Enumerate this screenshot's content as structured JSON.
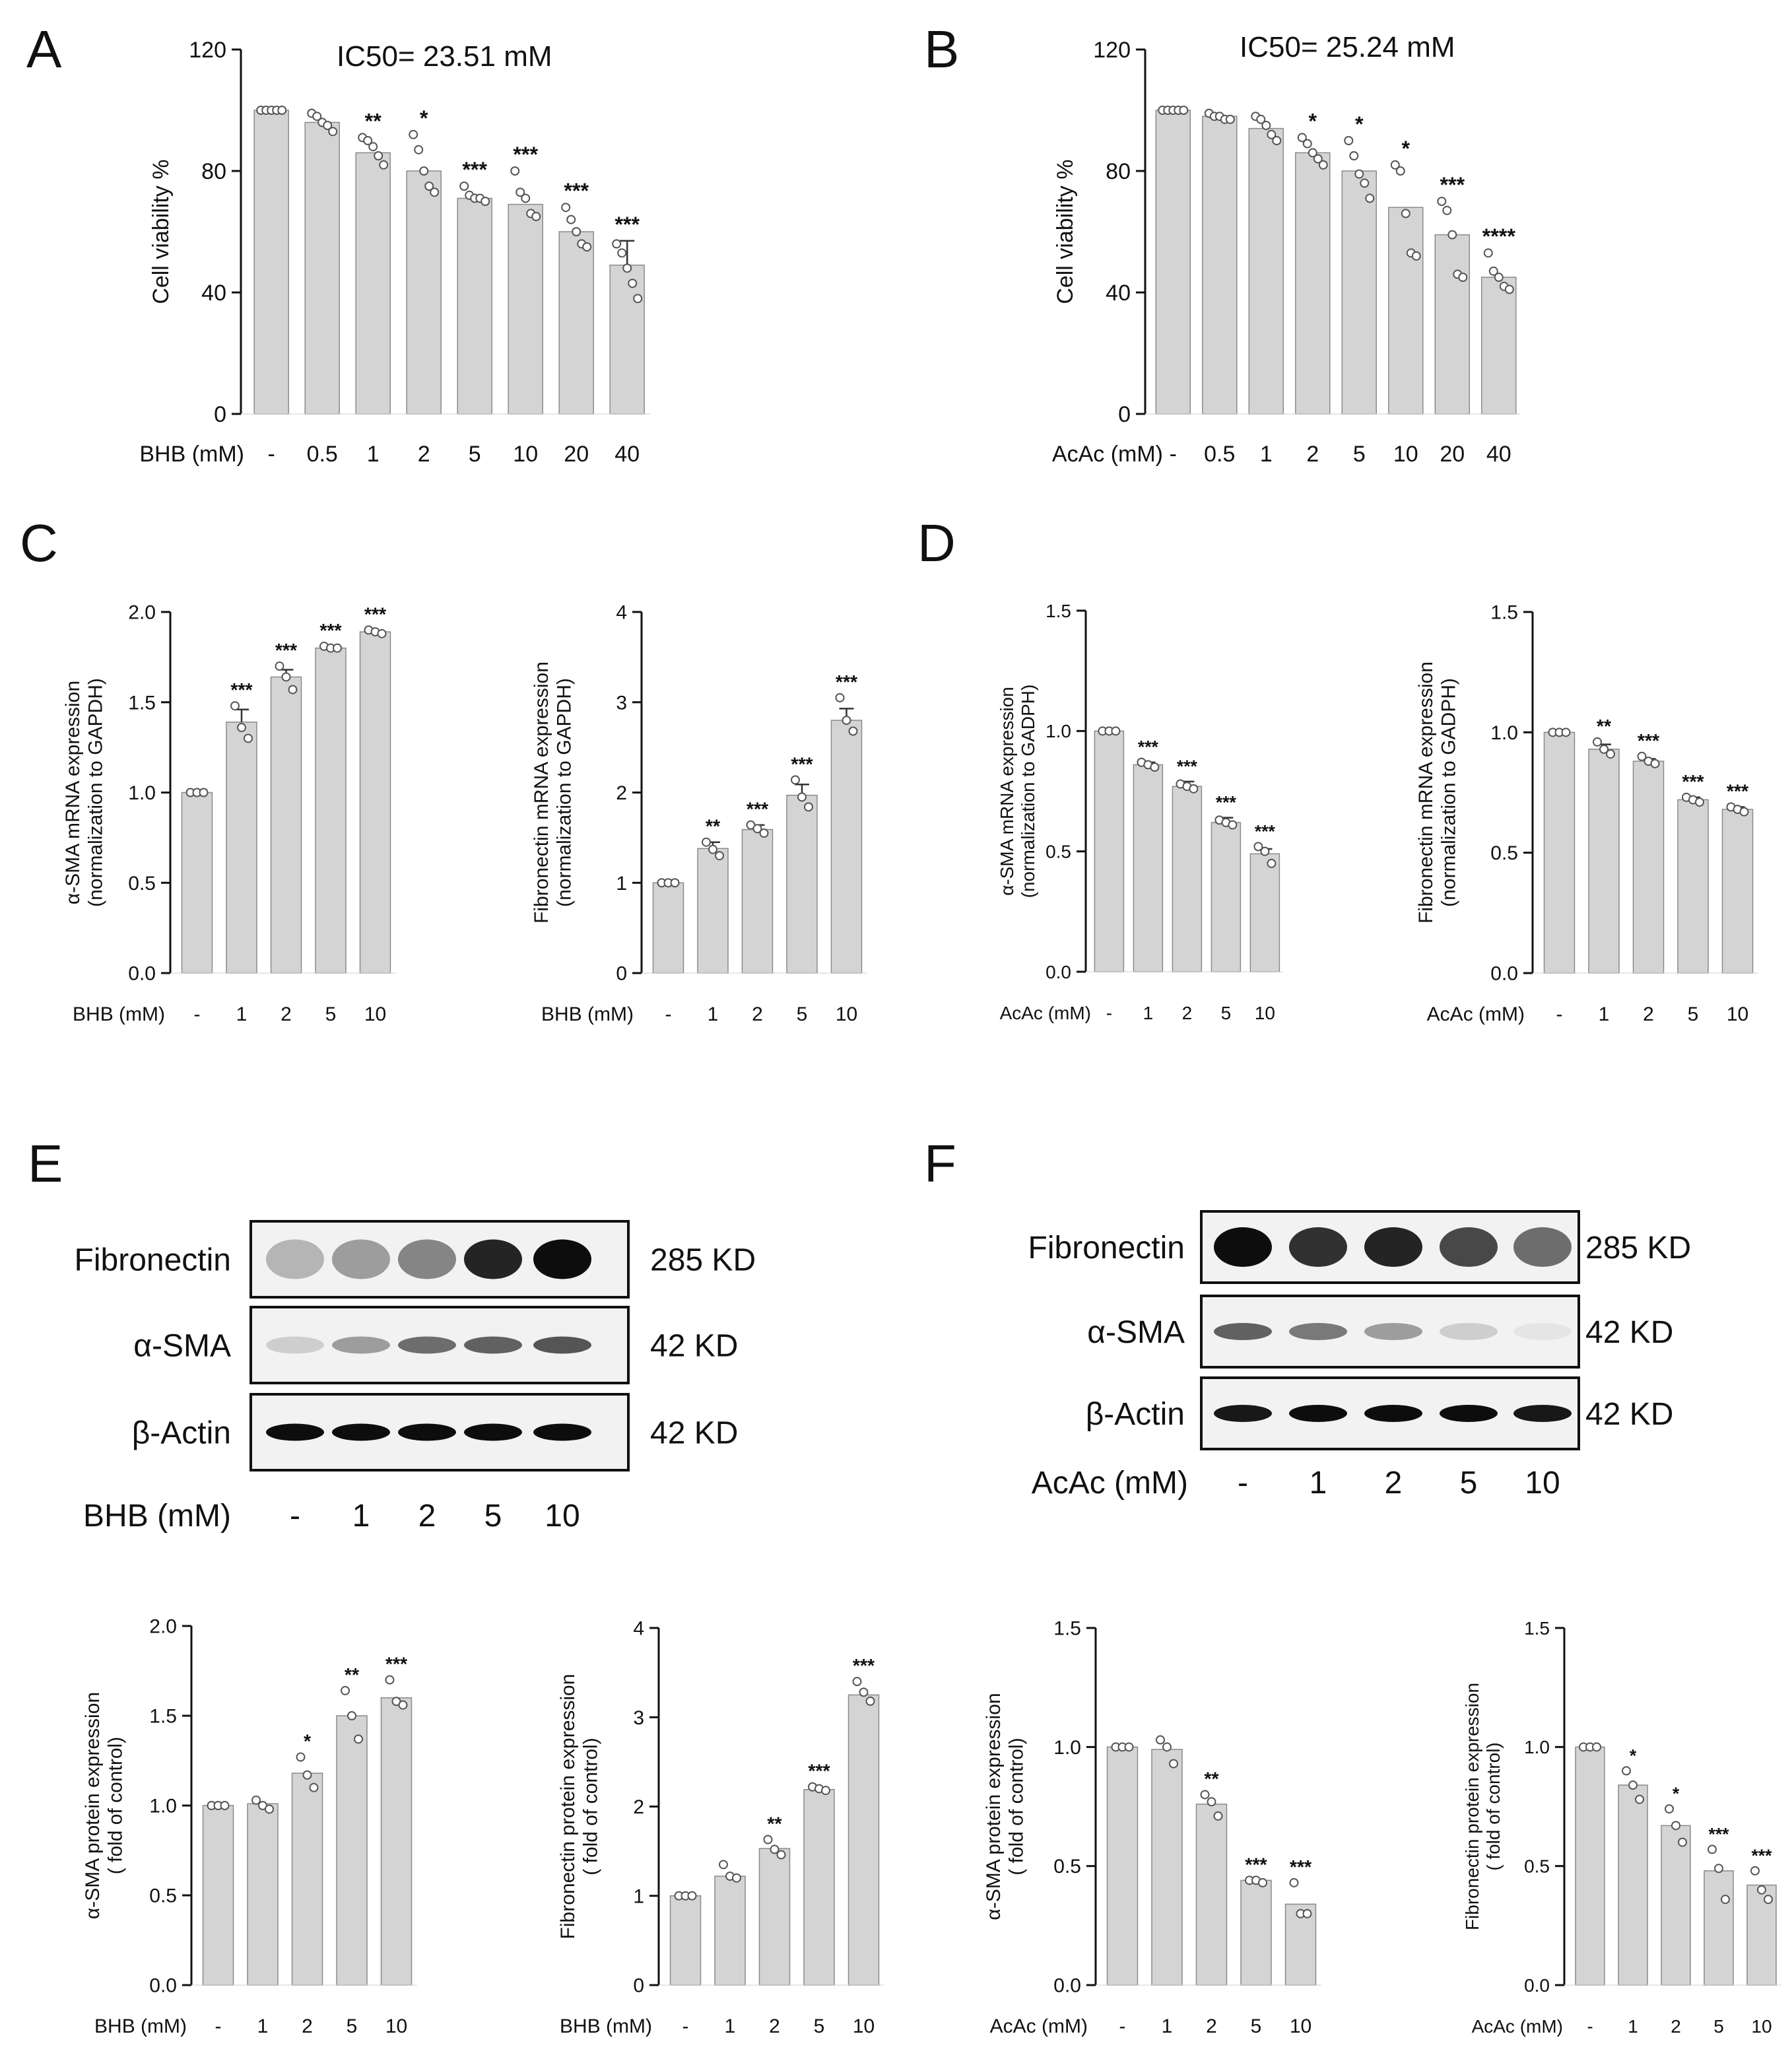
{
  "colors": {
    "bar": "#d4d4d4",
    "bar_stroke": "#8a8a8a",
    "axis": "#111111",
    "point_stroke": "#555555"
  },
  "chart_data": [
    {
      "id": "A",
      "panel_label": "A",
      "type": "bar",
      "title": "IC50= 23.51 mM",
      "xlabel": "BHB (mM)",
      "ylabel": "Cell viability %",
      "categories": [
        "-",
        "0.5",
        "1",
        "2",
        "5",
        "10",
        "20",
        "40"
      ],
      "values": [
        100,
        96,
        86,
        80,
        71,
        69,
        60,
        49
      ],
      "errors": [
        0,
        0,
        0,
        0,
        0,
        0,
        0,
        8
      ],
      "points": [
        [
          100,
          100,
          100,
          100,
          100
        ],
        [
          99,
          98,
          96,
          95,
          93
        ],
        [
          91,
          90,
          88,
          85,
          82
        ],
        [
          92,
          87,
          80,
          75,
          73
        ],
        [
          75,
          72,
          71,
          71,
          70
        ],
        [
          80,
          73,
          71,
          66,
          65
        ],
        [
          68,
          64,
          60,
          56,
          55
        ],
        [
          56,
          53,
          48,
          43,
          38
        ]
      ],
      "sig": [
        "",
        "",
        "**",
        "*",
        "***",
        "***",
        "***",
        "***"
      ],
      "ylim": [
        0,
        120
      ],
      "yticks": [
        0,
        40,
        80,
        120
      ],
      "ytick_labels": [
        "0",
        "40",
        "80",
        "120"
      ]
    },
    {
      "id": "B",
      "panel_label": "B",
      "type": "bar",
      "title": "IC50= 25.24 mM",
      "xlabel": "AcAc (mM)",
      "ylabel": "Cell viability %",
      "categories": [
        "-",
        "0.5",
        "1",
        "2",
        "5",
        "10",
        "20",
        "40"
      ],
      "values": [
        100,
        98,
        94,
        86,
        80,
        68,
        59,
        45
      ],
      "errors": [
        0,
        0,
        0,
        0,
        0,
        0,
        0,
        0
      ],
      "points": [
        [
          100,
          100,
          100,
          100,
          100
        ],
        [
          99,
          98,
          98,
          97,
          97
        ],
        [
          98,
          97,
          95,
          92,
          90
        ],
        [
          91,
          89,
          86,
          84,
          82
        ],
        [
          90,
          85,
          79,
          76,
          71
        ],
        [
          82,
          80,
          66,
          53,
          52
        ],
        [
          70,
          67,
          59,
          46,
          45
        ],
        [
          53,
          47,
          45,
          42,
          41
        ]
      ],
      "sig": [
        "",
        "",
        "",
        "*",
        "*",
        "*",
        "***",
        "****"
      ],
      "ylim": [
        0,
        120
      ],
      "yticks": [
        0,
        40,
        80,
        120
      ],
      "ytick_labels": [
        "0",
        "40",
        "80",
        "120"
      ]
    },
    {
      "id": "C1",
      "panel_label": "C",
      "type": "bar",
      "xlabel": "BHB (mM)",
      "ylabel_lines": [
        "α-SMA mRNA expression",
        "(normalization to GAPDH)"
      ],
      "categories": [
        "-",
        "1",
        "2",
        "5",
        "10"
      ],
      "values": [
        1.0,
        1.39,
        1.64,
        1.8,
        1.89
      ],
      "errors": [
        0,
        0.07,
        0.04,
        0,
        0
      ],
      "points": [
        [
          1.0,
          1.0,
          1.0
        ],
        [
          1.48,
          1.36,
          1.3
        ],
        [
          1.7,
          1.64,
          1.57
        ],
        [
          1.81,
          1.8,
          1.8
        ],
        [
          1.9,
          1.89,
          1.88
        ]
      ],
      "sig": [
        "",
        "***",
        "***",
        "***",
        "***"
      ],
      "ylim": [
        0,
        2.0
      ],
      "yticks": [
        0,
        0.5,
        1.0,
        1.5,
        2.0
      ],
      "ytick_labels": [
        "0.0",
        "0.5",
        "1.0",
        "1.5",
        "2.0"
      ]
    },
    {
      "id": "C2",
      "panel_label": "",
      "type": "bar",
      "xlabel": "BHB (mM)",
      "ylabel_lines": [
        "Fibronectin mRNA expression",
        "(normalization to GAPDH)"
      ],
      "categories": [
        "-",
        "1",
        "2",
        "5",
        "10"
      ],
      "values": [
        1.0,
        1.38,
        1.59,
        1.97,
        2.8
      ],
      "errors": [
        0,
        0.07,
        0.05,
        0.12,
        0.13
      ],
      "points": [
        [
          1.0,
          1.0,
          1.0
        ],
        [
          1.45,
          1.37,
          1.3
        ],
        [
          1.64,
          1.6,
          1.55
        ],
        [
          2.14,
          1.95,
          1.84
        ],
        [
          3.05,
          2.8,
          2.68
        ]
      ],
      "sig": [
        "",
        "**",
        "***",
        "***",
        "***"
      ],
      "ylim": [
        0,
        4
      ],
      "yticks": [
        0,
        1,
        2,
        3,
        4
      ],
      "ytick_labels": [
        "0",
        "1",
        "2",
        "3",
        "4"
      ]
    },
    {
      "id": "D1",
      "panel_label": "D",
      "type": "bar",
      "xlabel": "AcAc (mM)",
      "ylabel_lines": [
        "α-SMA mRNA expression",
        "(normalization to GADPH)"
      ],
      "categories": [
        "-",
        "1",
        "2",
        "5",
        "10"
      ],
      "values": [
        1.0,
        0.86,
        0.77,
        0.62,
        0.49
      ],
      "errors": [
        0,
        0.01,
        0.02,
        0.02,
        0.02
      ],
      "points": [
        [
          1.0,
          1.0,
          1.0
        ],
        [
          0.87,
          0.86,
          0.85
        ],
        [
          0.78,
          0.77,
          0.76
        ],
        [
          0.63,
          0.62,
          0.61
        ],
        [
          0.52,
          0.5,
          0.45
        ]
      ],
      "sig": [
        "",
        "***",
        "***",
        "***",
        "***"
      ],
      "ylim": [
        0,
        1.5
      ],
      "yticks": [
        0,
        0.5,
        1.0,
        1.5
      ],
      "ytick_labels": [
        "0.0",
        "0.5",
        "1.0",
        "1.5"
      ]
    },
    {
      "id": "D2",
      "panel_label": "",
      "type": "bar",
      "xlabel": "AcAc (mM)",
      "ylabel_lines": [
        "Fibronectin mRNA expression",
        "(normalization to GADPH)"
      ],
      "categories": [
        "-",
        "1",
        "2",
        "5",
        "10"
      ],
      "values": [
        1.0,
        0.93,
        0.88,
        0.72,
        0.68
      ],
      "errors": [
        0,
        0.02,
        0.01,
        0.01,
        0.01
      ],
      "points": [
        [
          1.0,
          1.0,
          1.0
        ],
        [
          0.96,
          0.93,
          0.91
        ],
        [
          0.9,
          0.88,
          0.87
        ],
        [
          0.73,
          0.72,
          0.71
        ],
        [
          0.69,
          0.68,
          0.67
        ]
      ],
      "sig": [
        "",
        "**",
        "***",
        "***",
        "***"
      ],
      "ylim": [
        0,
        1.5
      ],
      "yticks": [
        0,
        0.5,
        1.0,
        1.5
      ],
      "ytick_labels": [
        "0.0",
        "0.5",
        "1.0",
        "1.5"
      ]
    },
    {
      "id": "E1",
      "panel_label": "",
      "type": "bar",
      "xlabel": "BHB (mM)",
      "ylabel_lines": [
        "α-SMA  protein  expression",
        "( fold of control)"
      ],
      "categories": [
        "-",
        "1",
        "2",
        "5",
        "10"
      ],
      "values": [
        1.0,
        1.01,
        1.18,
        1.5,
        1.6
      ],
      "errors": [
        0,
        0,
        0,
        0,
        0
      ],
      "points": [
        [
          1.0,
          1.0,
          1.0
        ],
        [
          1.03,
          1.0,
          0.98
        ],
        [
          1.27,
          1.17,
          1.1
        ],
        [
          1.64,
          1.5,
          1.37
        ],
        [
          1.7,
          1.58,
          1.56
        ]
      ],
      "sig": [
        "",
        "",
        "*",
        "**",
        "***"
      ],
      "ylim": [
        0,
        2.0
      ],
      "yticks": [
        0,
        0.5,
        1.0,
        1.5,
        2.0
      ],
      "ytick_labels": [
        "0.0",
        "0.5",
        "1.0",
        "1.5",
        "2.0"
      ]
    },
    {
      "id": "E2",
      "panel_label": "",
      "type": "bar",
      "xlabel": "BHB (mM)",
      "ylabel_lines": [
        "Fibronectin  protein  expression",
        "( fold of control)"
      ],
      "categories": [
        "-",
        "1",
        "2",
        "5",
        "10"
      ],
      "values": [
        1.0,
        1.22,
        1.53,
        2.19,
        3.25
      ],
      "errors": [
        0,
        0,
        0,
        0,
        0
      ],
      "points": [
        [
          1.0,
          1.0,
          1.0
        ],
        [
          1.35,
          1.22,
          1.2
        ],
        [
          1.63,
          1.52,
          1.46
        ],
        [
          2.22,
          2.2,
          2.18
        ],
        [
          3.4,
          3.28,
          3.18
        ]
      ],
      "sig": [
        "",
        "",
        "**",
        "***",
        "***"
      ],
      "ylim": [
        0,
        4
      ],
      "yticks": [
        0,
        1,
        2,
        3,
        4
      ],
      "ytick_labels": [
        "0",
        "1",
        "2",
        "3",
        "4"
      ]
    },
    {
      "id": "F1",
      "panel_label": "",
      "type": "bar",
      "xlabel": "AcAc (mM)",
      "ylabel_lines": [
        "α-SMA  protein  expression",
        "( fold of control)"
      ],
      "categories": [
        "-",
        "1",
        "2",
        "5",
        "10"
      ],
      "values": [
        1.0,
        0.99,
        0.76,
        0.44,
        0.34
      ],
      "errors": [
        0,
        0,
        0,
        0,
        0
      ],
      "points": [
        [
          1.0,
          1.0,
          1.0
        ],
        [
          1.03,
          1.0,
          0.93
        ],
        [
          0.8,
          0.77,
          0.71
        ],
        [
          0.44,
          0.44,
          0.43
        ],
        [
          0.43,
          0.3,
          0.3
        ]
      ],
      "sig": [
        "",
        "",
        "**",
        "***",
        "***"
      ],
      "ylim": [
        0,
        1.5
      ],
      "yticks": [
        0,
        0.5,
        1.0,
        1.5
      ],
      "ytick_labels": [
        "0.0",
        "0.5",
        "1.0",
        "1.5"
      ]
    },
    {
      "id": "F2",
      "panel_label": "",
      "type": "bar",
      "xlabel": "AcAc (mM)",
      "ylabel_lines": [
        "Fibronectin protein expression",
        "( fold of control)"
      ],
      "categories": [
        "-",
        "1",
        "2",
        "5",
        "10"
      ],
      "values": [
        1.0,
        0.84,
        0.67,
        0.48,
        0.42
      ],
      "errors": [
        0,
        0,
        0,
        0,
        0
      ],
      "points": [
        [
          1.0,
          1.0,
          1.0
        ],
        [
          0.9,
          0.84,
          0.78
        ],
        [
          0.74,
          0.67,
          0.6
        ],
        [
          0.57,
          0.49,
          0.36
        ],
        [
          0.48,
          0.4,
          0.36
        ]
      ],
      "sig": [
        "",
        "*",
        "*",
        "***",
        "***"
      ],
      "ylim": [
        0,
        1.5
      ],
      "yticks": [
        0,
        0.5,
        1.0,
        1.5
      ],
      "ytick_labels": [
        "0.0",
        "0.5",
        "1.0",
        "1.5"
      ]
    }
  ],
  "blots": {
    "E": {
      "panel_label": "E",
      "rows": [
        {
          "label": "Fibronectin",
          "size": "285 KD",
          "intensities": [
            0.25,
            0.35,
            0.45,
            0.85,
            0.95
          ]
        },
        {
          "label": "α-SMA",
          "size": "42 KD",
          "intensities": [
            0.15,
            0.35,
            0.55,
            0.6,
            0.65
          ]
        },
        {
          "label": "β-Actin",
          "size": "42 KD",
          "intensities": [
            0.95,
            0.95,
            0.95,
            0.95,
            0.95
          ]
        }
      ],
      "xlabel": "BHB (mM)",
      "lanes": [
        "-",
        "1",
        "2",
        "5",
        "10"
      ]
    },
    "F": {
      "panel_label": "F",
      "rows": [
        {
          "label": "Fibronectin",
          "size": "285 KD",
          "intensities": [
            0.95,
            0.8,
            0.85,
            0.7,
            0.55
          ]
        },
        {
          "label": "α-SMA",
          "size": "42 KD",
          "intensities": [
            0.6,
            0.5,
            0.35,
            0.15,
            0.05
          ]
        },
        {
          "label": "β-Actin",
          "size": "42 KD",
          "intensities": [
            0.9,
            0.95,
            0.95,
            0.95,
            0.9
          ]
        }
      ],
      "xlabel": "AcAc (mM)",
      "lanes": [
        "-",
        "1",
        "2",
        "5",
        "10"
      ]
    }
  }
}
